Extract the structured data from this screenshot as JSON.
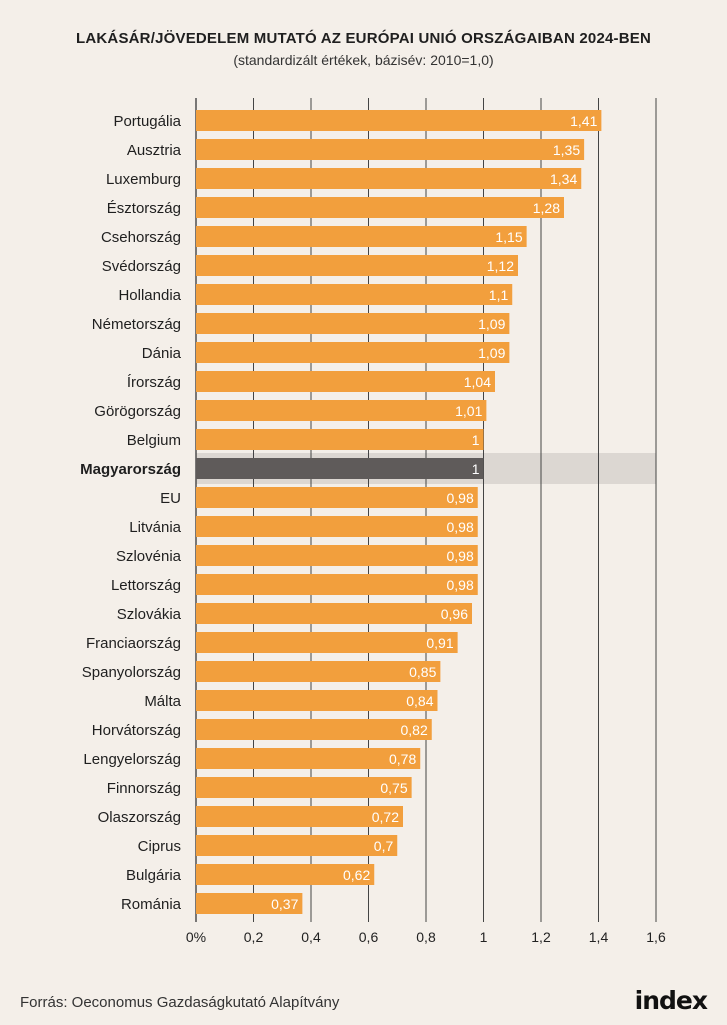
{
  "chart_data": {
    "type": "bar",
    "orientation": "horizontal",
    "title": "LAKÁSÁR/JÖVEDELEM MUTATÓ AZ EURÓPAI UNIÓ ORSZÁGAIBAN 2024-BEN",
    "subtitle": "(standardizált értékek, bázisév: 2010=1,0)",
    "categories": [
      "Portugália",
      "Ausztria",
      "Luxemburg",
      "Észtország",
      "Csehország",
      "Svédország",
      "Hollandia",
      "Németország",
      "Dánia",
      "Írország",
      "Görögország",
      "Belgium",
      "Magyarország",
      "EU",
      "Litvánia",
      "Szlovénia",
      "Lettország",
      "Szlovákia",
      "Franciaország",
      "Spanyolország",
      "Málta",
      "Horvátország",
      "Lengyelország",
      "Finnország",
      "Olaszország",
      "Ciprus",
      "Bulgária",
      "Románia"
    ],
    "values": [
      1.41,
      1.35,
      1.34,
      1.28,
      1.15,
      1.12,
      1.1,
      1.09,
      1.09,
      1.04,
      1.01,
      1,
      1,
      0.98,
      0.98,
      0.98,
      0.98,
      0.96,
      0.91,
      0.85,
      0.84,
      0.82,
      0.78,
      0.75,
      0.72,
      0.7,
      0.62,
      0.37
    ],
    "value_labels": [
      "1,41",
      "1,35",
      "1,34",
      "1,28",
      "1,15",
      "1,12",
      "1,1",
      "1,09",
      "1,09",
      "1,04",
      "1,01",
      "1",
      "1",
      "0,98",
      "0,98",
      "0,98",
      "0,98",
      "0,96",
      "0,91",
      "0,85",
      "0,84",
      "0,82",
      "0,78",
      "0,75",
      "0,72",
      "0,7",
      "0,62",
      "0,37"
    ],
    "highlight": "Magyarország",
    "xlim": [
      0,
      1.6
    ],
    "xticks": [
      0,
      0.2,
      0.4,
      0.6,
      0.8,
      1,
      1.2,
      1.4,
      1.6
    ],
    "xtick_labels": [
      "0%",
      "0,2",
      "0,4",
      "0,6",
      "0,8",
      "1",
      "1,2",
      "1,4",
      "1,6"
    ],
    "grid": true,
    "colors": {
      "bar": "#f29f3d",
      "highlight_bar": "#5f5b5a",
      "highlight_band": "#dcd7d2",
      "grid": "#444444"
    }
  },
  "footer": {
    "source": "Forrás: Oeconomus Gazdaságkutató Alapítvány",
    "logo": "index"
  }
}
